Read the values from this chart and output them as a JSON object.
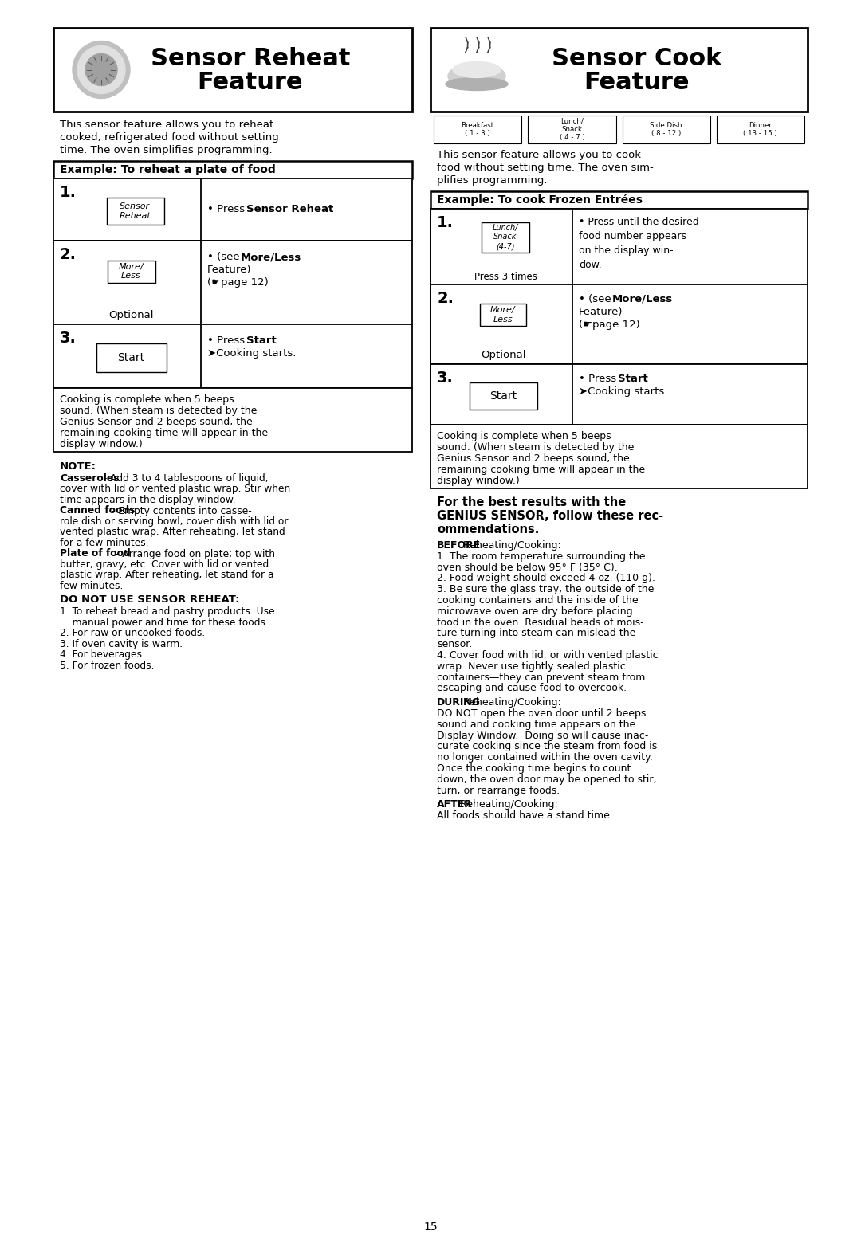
{
  "bg_color": "#ffffff",
  "page_number": "15",
  "left_title_1": "Sensor Reheat",
  "left_title_2": "Feature",
  "right_title_1": "Sensor Cook",
  "right_title_2": "Feature",
  "left_desc": [
    "This sensor feature allows you to reheat",
    "cooked, refrigerated food without setting",
    "time. The oven simplifies programming."
  ],
  "right_icons": [
    "Breakfast\n( 1 - 3 )",
    "Lunch/\nSnack\n( 4 - 7 )",
    "Side Dish\n( 8 - 12 )",
    "Dinner\n( 13 - 15 )"
  ],
  "right_desc": [
    "This sensor feature allows you to cook",
    "food without setting time. The oven sim-",
    "plifies programming."
  ],
  "left_ex_title": "Example: To reheat a plate of food",
  "right_ex_title": "Example: To cook Frozen Entrées",
  "complete_lines": [
    "Cooking is complete when 5 beeps",
    "sound. (When steam is detected by the",
    "Genius Sensor and 2 beeps sound, the",
    "remaining cooking time will appear in the",
    "display window.)"
  ],
  "note_title": "NOTE:",
  "note_items": [
    [
      [
        "Casseroles",
        true
      ],
      [
        " - Add 3 to 4 tablespoons of liquid,",
        false
      ]
    ],
    [
      [
        "cover with lid or vented plastic wrap. Stir when",
        false
      ]
    ],
    [
      [
        "time appears in the display window.",
        false
      ]
    ],
    [
      [
        "Canned foods",
        true
      ],
      [
        " - Empty contents into casse-",
        false
      ]
    ],
    [
      [
        "role dish or serving bowl, cover dish with lid or",
        false
      ]
    ],
    [
      [
        "vented plastic wrap. After reheating, let stand",
        false
      ]
    ],
    [
      [
        "for a few minutes.",
        false
      ]
    ],
    [
      [
        "Plate of food",
        true
      ],
      [
        " - Arrange food on plate; top with",
        false
      ]
    ],
    [
      [
        "butter, gravy, etc. Cover with lid or vented",
        false
      ]
    ],
    [
      [
        "plastic wrap. After reheating, let stand for a",
        false
      ]
    ],
    [
      [
        "few minutes.",
        false
      ]
    ]
  ],
  "do_not_title": "DO NOT USE SENSOR REHEAT:",
  "do_not_items": [
    "1. To reheat bread and pastry products. Use",
    "    manual power and time for these foods.",
    "2. For raw or uncooked foods.",
    "3. If oven cavity is warm.",
    "4. For beverages.",
    "5. For frozen foods."
  ],
  "rec_title_lines": [
    "For the best results with the",
    "GENIUS SENSOR, follow these rec-",
    "ommendations."
  ],
  "before_lines": [
    [
      [
        "BEFORE",
        true
      ],
      [
        " Reheating/Cooking:",
        false
      ]
    ],
    [
      [
        "1. The room temperature surrounding the",
        false
      ]
    ],
    [
      [
        "oven should be below 95° F (35° C).",
        false
      ]
    ],
    [
      [
        "2. Food weight should exceed 4 oz. (110 g).",
        false
      ]
    ],
    [
      [
        "3. Be sure the glass tray, the outside of the",
        false
      ]
    ],
    [
      [
        "cooking containers and the inside of the",
        false
      ]
    ],
    [
      [
        "microwave oven are dry before placing",
        false
      ]
    ],
    [
      [
        "food in the oven. Residual beads of mois-",
        false
      ]
    ],
    [
      [
        "ture turning into steam can mislead the",
        false
      ]
    ],
    [
      [
        "sensor.",
        false
      ]
    ],
    [
      [
        "4. Cover food with lid, or with vented plastic",
        false
      ]
    ],
    [
      [
        "wrap. Never use tightly sealed plastic",
        false
      ]
    ],
    [
      [
        "containers—they can prevent steam from",
        false
      ]
    ],
    [
      [
        "escaping and cause food to overcook.",
        false
      ]
    ]
  ],
  "during_lines": [
    [
      [
        "DURING",
        true
      ],
      [
        " Reheating/Cooking:",
        false
      ]
    ],
    [
      [
        "DO NOT open the oven door until 2 beeps",
        false
      ]
    ],
    [
      [
        "sound and cooking time appears on the",
        false
      ]
    ],
    [
      [
        "Display Window.  Doing so will cause inac-",
        false
      ]
    ],
    [
      [
        "curate cooking since the steam from food is",
        false
      ]
    ],
    [
      [
        "no longer contained within the oven cavity.",
        false
      ]
    ],
    [
      [
        "Once the cooking time begins to count",
        false
      ]
    ],
    [
      [
        "down, the oven door may be opened to stir,",
        false
      ]
    ],
    [
      [
        "turn, or rearrange foods.",
        false
      ]
    ]
  ],
  "after_lines": [
    [
      [
        "AFTER",
        true
      ],
      [
        " Reheating/Cooking:",
        false
      ]
    ],
    [
      [
        "All foods should have a stand time.",
        false
      ]
    ]
  ]
}
